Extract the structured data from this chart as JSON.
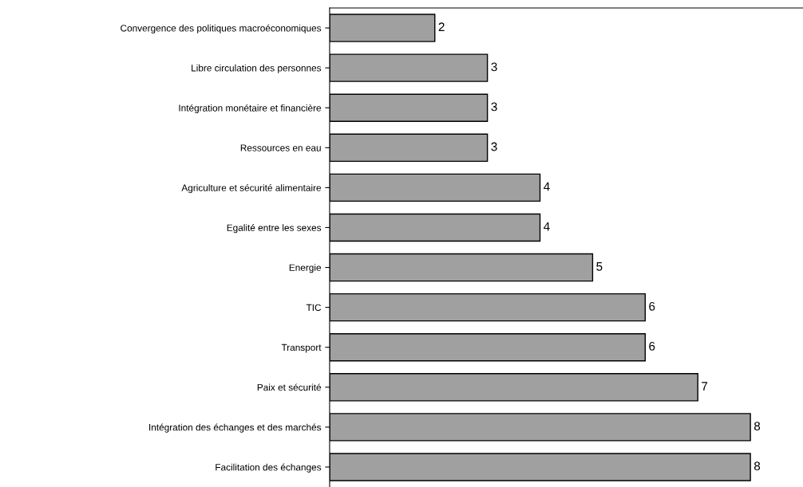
{
  "chart_data": {
    "type": "bar",
    "orientation": "horizontal",
    "categories": [
      "Convergence des politiques macroéconomiques",
      "Libre circulation des personnes",
      "Intégration monétaire et financière",
      "Ressources en eau",
      "Agriculture et sécurité alimentaire",
      "Egalité entre les sexes",
      "Energie",
      "TIC",
      "Transport",
      "Paix et sécurité",
      "Intégration des échanges et des marchés",
      "Facilitation des échanges"
    ],
    "values": [
      2,
      3,
      3,
      3,
      4,
      4,
      5,
      6,
      6,
      7,
      8,
      8
    ],
    "color": "#a0a0a0",
    "xlim": [
      0,
      9
    ],
    "data_labels": true,
    "tick_labels": "y",
    "grid": false,
    "legend": false
  }
}
